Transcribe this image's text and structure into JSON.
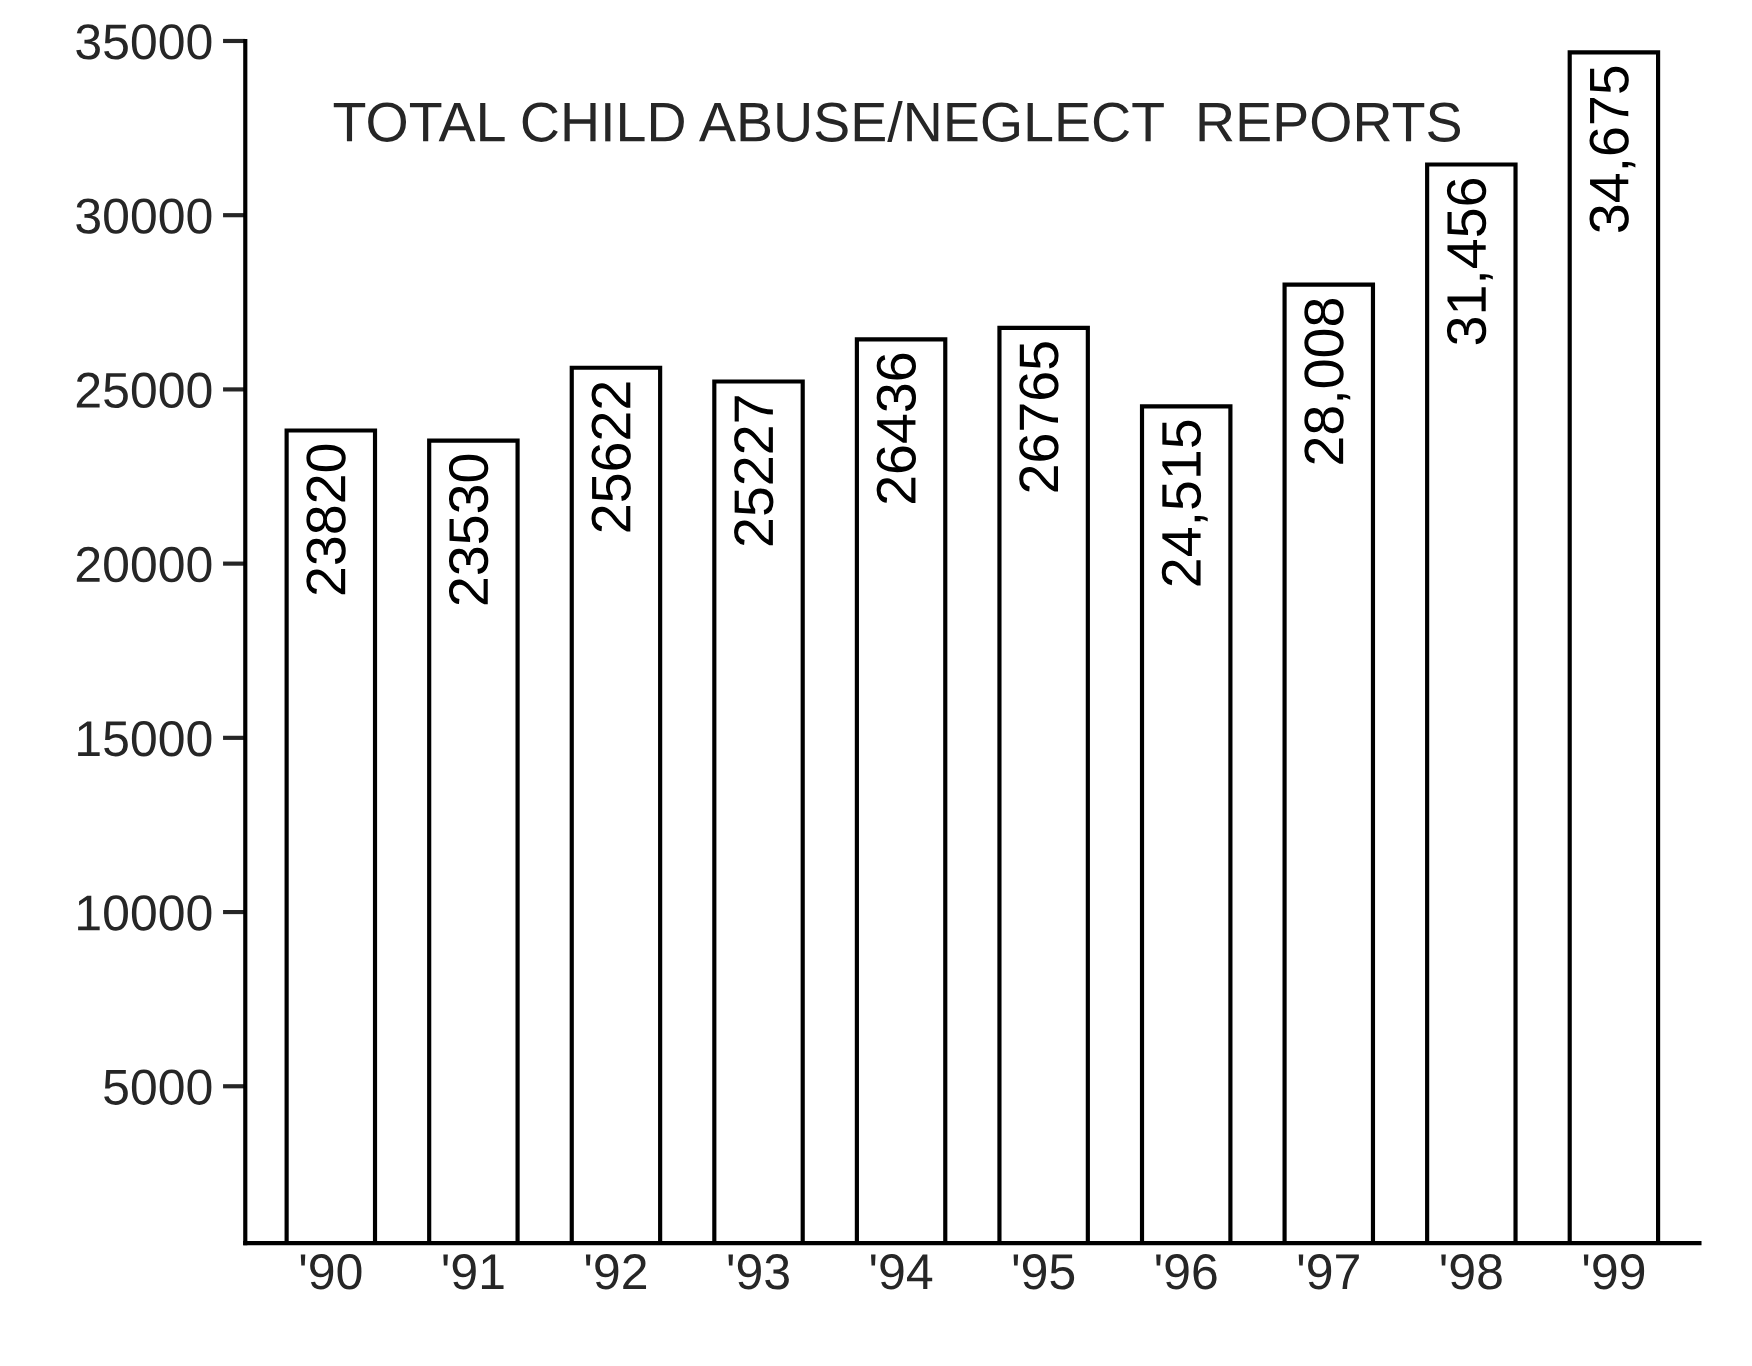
{
  "chart_data": {
    "type": "bar",
    "title": "TOTAL CHILD ABUSE/NEGLECT  REPORTS",
    "categories": [
      "'90",
      "'91",
      "'92",
      "'93",
      "'94",
      "'95",
      "'96",
      "'97",
      "'98",
      "'99"
    ],
    "values": [
      23820,
      23530,
      25622,
      25227,
      26436,
      26765,
      24515,
      28008,
      31456,
      34675
    ],
    "value_labels": [
      "23820",
      "23530",
      "25622",
      "25227",
      "26436",
      "26765",
      "24,515",
      "28,008",
      "31,456",
      "34,675"
    ],
    "color": "#ffffff",
    "ylim": [
      500,
      35000
    ],
    "yticks": [
      5000,
      10000,
      15000,
      20000,
      25000,
      30000,
      35000
    ],
    "grid": false,
    "legend": false
  }
}
